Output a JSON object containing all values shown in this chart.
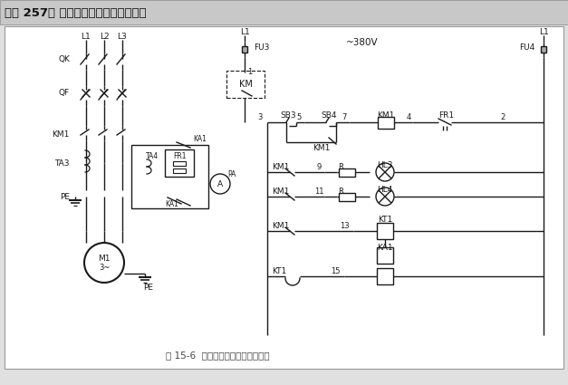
{
  "title": "【例 257】 鼓风机电动机控制回路之二",
  "caption": "图 15-6  鼓风机电动机控制回路之二",
  "380v_label": "~380V",
  "line_color": "#1a1a1a",
  "title_bg": "#c8c8c8",
  "diagram_bg": "#ffffff",
  "fig_bg": "#e0e0e0"
}
